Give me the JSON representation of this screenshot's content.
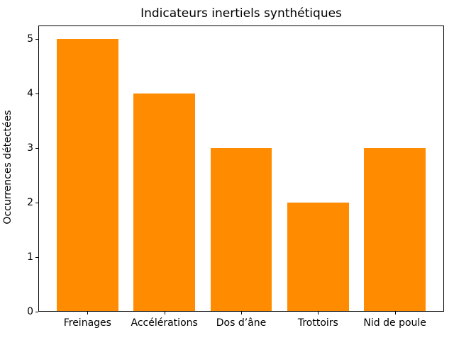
{
  "chart_data": {
    "type": "bar",
    "title": "Indicateurs inertiels synthétiques",
    "xlabel": "",
    "ylabel": "Occurrences détectées",
    "categories": [
      "Freinages",
      "Accélérations",
      "Dos d’âne",
      "Trottoirs",
      "Nid de poule"
    ],
    "values": [
      5,
      4,
      3,
      2,
      3
    ],
    "yticks": [
      0,
      1,
      2,
      3,
      4,
      5
    ],
    "ylim": [
      0,
      5.25
    ],
    "bar_width_units": 0.8,
    "legend": null,
    "grid": false,
    "colors": {
      "bar": "#ff8c00",
      "axis": "#000000",
      "text": "#000000",
      "background": "#ffffff"
    }
  }
}
